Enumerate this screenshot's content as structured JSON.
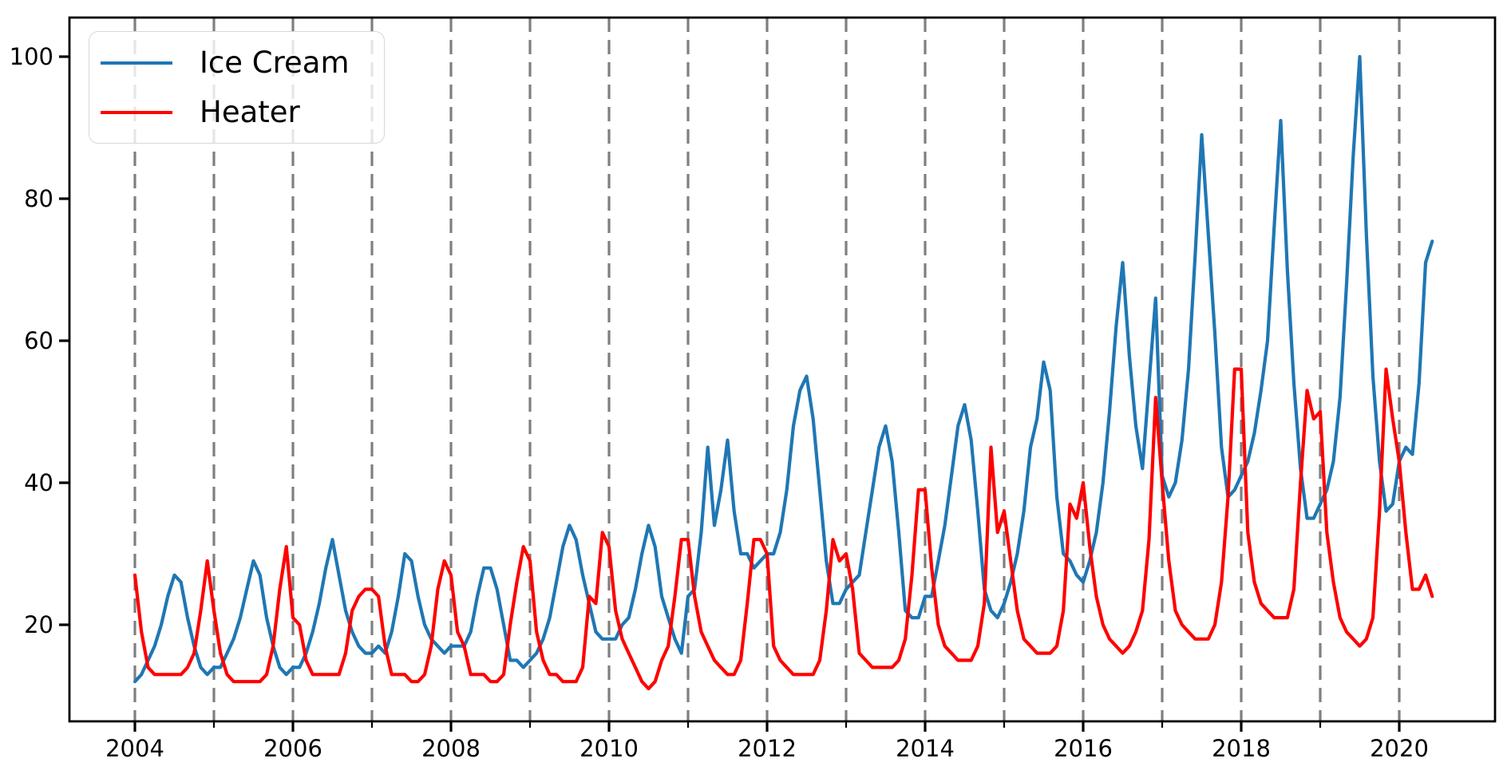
{
  "chart_data": {
    "type": "line",
    "title": "",
    "xlabel": "",
    "ylabel": "",
    "x_start_year": 2004,
    "x_start_month": "January",
    "x_frequency": "monthly",
    "xlim_years": [
      2003.172,
      2021.212
    ],
    "ylim": [
      6.4,
      105.5
    ],
    "y_ticks": [
      20,
      40,
      60,
      80,
      100
    ],
    "x_major_ticks": [
      2004,
      2006,
      2008,
      2010,
      2012,
      2014,
      2016,
      2018,
      2020
    ],
    "x_minor_ticks": [
      2005,
      2007,
      2009,
      2011,
      2013,
      2015,
      2017,
      2019
    ],
    "grid_years": [
      2004,
      2005,
      2006,
      2007,
      2008,
      2009,
      2010,
      2011,
      2012,
      2013,
      2014,
      2015,
      2016,
      2017,
      2018,
      2019,
      2020
    ],
    "grid_style": "vertical dashed",
    "grid_color": "#7f7f7f",
    "spine_color": "#000000",
    "background_color": "#ffffff",
    "legend_position": "upper left",
    "series": [
      {
        "name": "Ice Cream",
        "color": "#1f77b4",
        "values": [
          12,
          13,
          15,
          17,
          20,
          24,
          27,
          26,
          21,
          17,
          14,
          13,
          14,
          14,
          16,
          18,
          21,
          25,
          29,
          27,
          21,
          17,
          14,
          13,
          14,
          14,
          16,
          19,
          23,
          28,
          32,
          27,
          22,
          19,
          17,
          16,
          16,
          17,
          16,
          19,
          24,
          30,
          29,
          24,
          20,
          18,
          17,
          16,
          17,
          17,
          17,
          19,
          24,
          28,
          28,
          25,
          20,
          15,
          15,
          14,
          15,
          16,
          18,
          21,
          26,
          31,
          34,
          32,
          27,
          23,
          19,
          18,
          18,
          18,
          20,
          21,
          25,
          30,
          34,
          31,
          24,
          21,
          18,
          16,
          24,
          25,
          33,
          45,
          34,
          39,
          46,
          36,
          30,
          30,
          28,
          29,
          30,
          30,
          33,
          39,
          48,
          53,
          55,
          49,
          39,
          29,
          23,
          23,
          25,
          26,
          27,
          33,
          39,
          45,
          48,
          43,
          33,
          22,
          21,
          21,
          24,
          24,
          29,
          34,
          41,
          48,
          51,
          46,
          36,
          25,
          22,
          21,
          23,
          26,
          30,
          36,
          45,
          49,
          57,
          53,
          38,
          30,
          29,
          27,
          26,
          29,
          33,
          40,
          50,
          62,
          71,
          58,
          48,
          42,
          54,
          66,
          41,
          38,
          40,
          46,
          56,
          72,
          89,
          75,
          61,
          45,
          38,
          39,
          41,
          43,
          47,
          53,
          60,
          76,
          91,
          70,
          54,
          42,
          35,
          35,
          37,
          39,
          43,
          52,
          68,
          86,
          100,
          75,
          55,
          43,
          36,
          37,
          43,
          45,
          44,
          54,
          71,
          74
        ]
      },
      {
        "name": "Heater",
        "color": "#ff0000",
        "values": [
          27,
          19,
          14,
          13,
          13,
          13,
          13,
          13,
          14,
          16,
          22,
          29,
          22,
          16,
          13,
          12,
          12,
          12,
          12,
          12,
          13,
          17,
          25,
          31,
          21,
          20,
          15,
          13,
          13,
          13,
          13,
          13,
          16,
          22,
          24,
          25,
          25,
          24,
          17,
          13,
          13,
          13,
          12,
          12,
          13,
          17,
          25,
          29,
          27,
          19,
          17,
          13,
          13,
          13,
          12,
          12,
          13,
          20,
          26,
          31,
          29,
          19,
          15,
          13,
          13,
          12,
          12,
          12,
          14,
          24,
          23,
          33,
          31,
          22,
          18,
          16,
          14,
          12,
          11,
          12,
          15,
          17,
          24,
          32,
          32,
          24,
          19,
          17,
          15,
          14,
          13,
          13,
          15,
          23,
          32,
          32,
          30,
          17,
          15,
          14,
          13,
          13,
          13,
          13,
          15,
          22,
          32,
          29,
          30,
          25,
          16,
          15,
          14,
          14,
          14,
          14,
          15,
          18,
          27,
          39,
          39,
          28,
          20,
          17,
          16,
          15,
          15,
          15,
          17,
          23,
          45,
          33,
          36,
          29,
          22,
          18,
          17,
          16,
          16,
          16,
          17,
          22,
          37,
          35,
          40,
          31,
          24,
          20,
          18,
          17,
          16,
          17,
          19,
          22,
          32,
          52,
          40,
          29,
          22,
          20,
          19,
          18,
          18,
          18,
          20,
          26,
          38,
          56,
          56,
          33,
          26,
          23,
          22,
          21,
          21,
          21,
          25,
          40,
          53,
          49,
          50,
          33,
          26,
          21,
          19,
          18,
          17,
          18,
          21,
          36,
          56,
          49,
          43,
          33,
          25,
          25,
          27,
          24
        ]
      }
    ]
  },
  "legend": {
    "items": [
      {
        "label": "Ice Cream"
      },
      {
        "label": "Heater"
      }
    ]
  }
}
